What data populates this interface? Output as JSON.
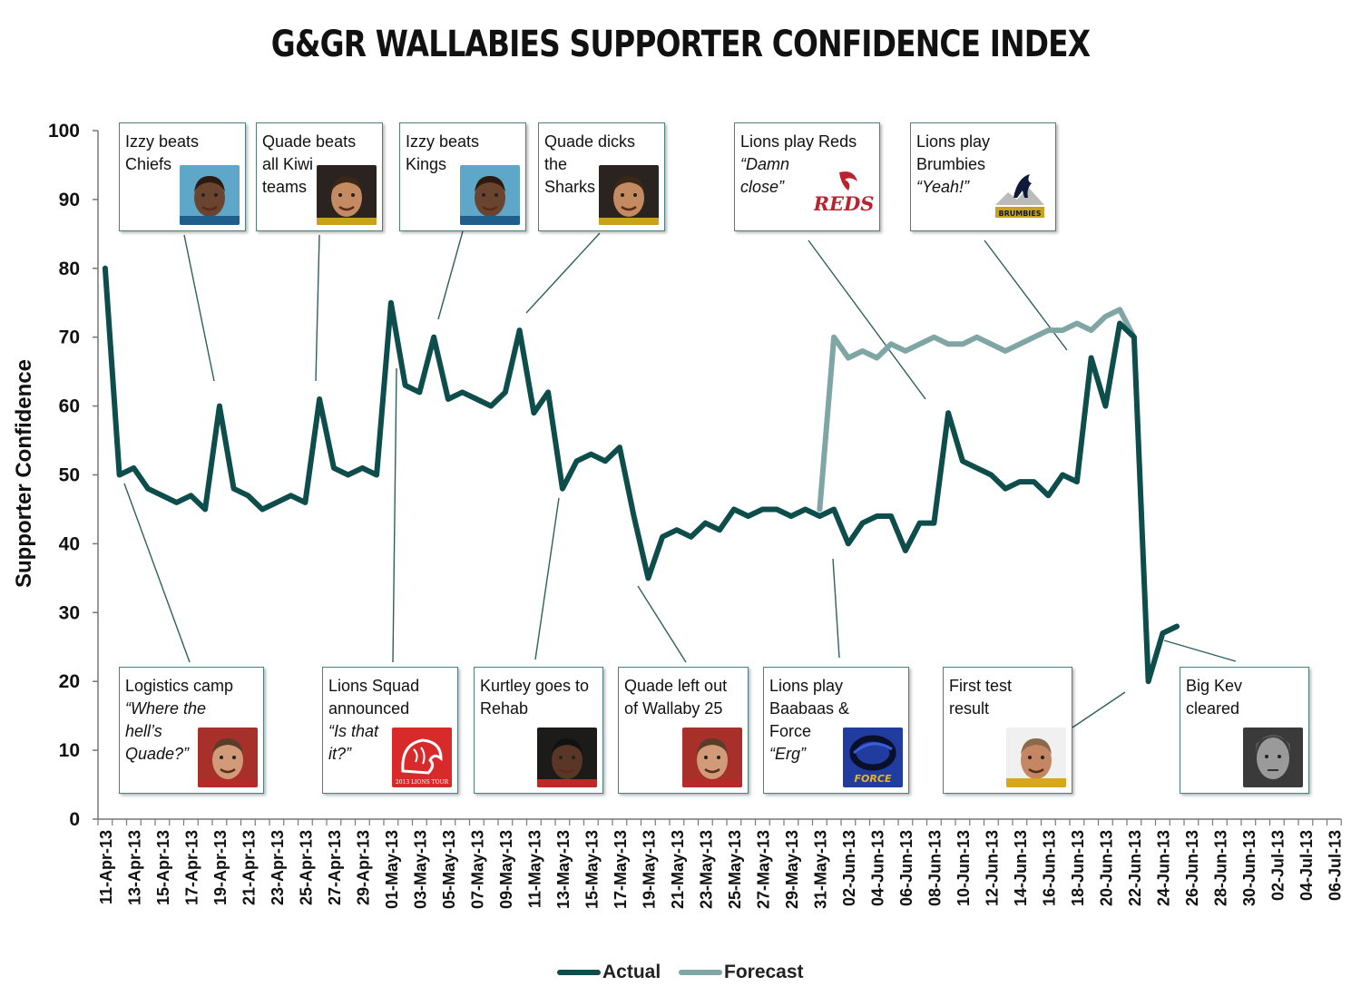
{
  "title": "G&GR WALLABIES SUPPORTER CONFIDENCE INDEX",
  "legend": {
    "actual": "Actual",
    "forecast": "Forecast"
  },
  "colors": {
    "actual": "#0d4d4b",
    "forecast": "#7fa6a5",
    "box_border": "#4d7f80",
    "leader": "#2f5f5e"
  },
  "annotations": [
    {
      "id": "izzy-chiefs",
      "title": "Izzy beats\nChiefs",
      "italic": "",
      "icon": "izzy-photo"
    },
    {
      "id": "quade-kiwi",
      "title": "Quade beats\nall Kiwi\nteams",
      "italic": "",
      "icon": "quade-smile-photo"
    },
    {
      "id": "izzy-kings",
      "title": "Izzy beats\nKings",
      "italic": "",
      "icon": "izzy-photo"
    },
    {
      "id": "quade-sharks",
      "title": "Quade dicks\nthe\nSharks",
      "italic": "",
      "icon": "quade-smile-photo"
    },
    {
      "id": "lions-reds",
      "title": "Lions play Reds",
      "italic": "“Damn\nclose”",
      "icon": "reds-logo",
      "logo_text": "REDS"
    },
    {
      "id": "lions-brumbies",
      "title": "Lions play\nBrumbies",
      "italic": "“Yeah!”",
      "icon": "brumbies-logo",
      "logo_text": "BRUMBIES"
    },
    {
      "id": "logistics",
      "title": "Logistics camp",
      "italic": "“Where the\nhell’s\nQuade?”",
      "icon": "quade-worried-photo"
    },
    {
      "id": "lions-squad",
      "title": "Lions Squad\nannounced",
      "italic": "“Is that\nit?”",
      "icon": "lions-tour-logo",
      "logo_text": "2013 LIONS TOUR"
    },
    {
      "id": "kurtley",
      "title": "Kurtley goes to\nRehab",
      "italic": "",
      "icon": "kurtley-photo"
    },
    {
      "id": "quade-out",
      "title": "Quade left out\nof Wallaby 25",
      "italic": "",
      "icon": "quade-worried-photo"
    },
    {
      "id": "lions-baabaas",
      "title": "Lions play\nBaabaas &\nForce",
      "italic": "“Erg”",
      "icon": "force-logo",
      "logo_text": "FORCE"
    },
    {
      "id": "first-test",
      "title": "First test\nresult",
      "italic": "",
      "icon": "coach-photo"
    },
    {
      "id": "big-kev",
      "title": "Big Kev\ncleared",
      "italic": "",
      "icon": "big-kev-photo"
    }
  ],
  "chart_data": {
    "type": "line",
    "title": "G&GR WALLABIES SUPPORTER CONFIDENCE INDEX",
    "xlabel": "",
    "ylabel": "Supporter Confidence",
    "ylim": [
      0,
      100
    ],
    "yticks": [
      0,
      10,
      20,
      30,
      40,
      50,
      60,
      70,
      80,
      90,
      100
    ],
    "x_tick_labels": [
      "11-Apr-13",
      "13-Apr-13",
      "15-Apr-13",
      "17-Apr-13",
      "19-Apr-13",
      "21-Apr-13",
      "23-Apr-13",
      "25-Apr-13",
      "27-Apr-13",
      "29-Apr-13",
      "01-May-13",
      "03-May-13",
      "05-May-13",
      "07-May-13",
      "09-May-13",
      "11-May-13",
      "13-May-13",
      "15-May-13",
      "17-May-13",
      "19-May-13",
      "21-May-13",
      "23-May-13",
      "25-May-13",
      "27-May-13",
      "29-May-13",
      "31-May-13",
      "02-Jun-13",
      "04-Jun-13",
      "06-Jun-13",
      "08-Jun-13",
      "10-Jun-13",
      "12-Jun-13",
      "14-Jun-13",
      "16-Jun-13",
      "18-Jun-13",
      "20-Jun-13",
      "22-Jun-13",
      "24-Jun-13",
      "26-Jun-13",
      "28-Jun-13",
      "30-Jun-13",
      "02-Jul-13",
      "04-Jul-13",
      "06-Jul-13"
    ],
    "x_range": [
      "11-Apr-13",
      "07-Jul-13"
    ],
    "grid": false,
    "legend_position": "bottom",
    "series": [
      {
        "name": "Actual",
        "start": "11-Apr-13",
        "values": [
          80,
          50,
          51,
          48,
          47,
          46,
          47,
          45,
          60,
          48,
          47,
          45,
          46,
          47,
          46,
          61,
          51,
          50,
          51,
          50,
          75,
          63,
          62,
          70,
          61,
          62,
          61,
          60,
          62,
          71,
          59,
          62,
          48,
          52,
          53,
          52,
          54,
          44,
          35,
          41,
          42,
          41,
          43,
          42,
          45,
          44,
          45,
          45,
          44,
          45,
          44,
          45,
          40,
          43,
          44,
          44,
          39,
          43,
          43,
          59,
          52,
          51,
          50,
          48,
          49,
          49,
          47,
          50,
          49,
          67,
          60,
          72,
          70,
          20,
          27,
          28
        ]
      },
      {
        "name": "Forecast",
        "start": "31-May-13",
        "values": [
          45,
          70,
          67,
          68,
          67,
          69,
          68,
          69,
          70,
          69,
          69,
          70,
          69,
          68,
          69,
          70,
          71,
          71,
          72,
          71,
          73,
          74,
          70
        ]
      }
    ]
  }
}
